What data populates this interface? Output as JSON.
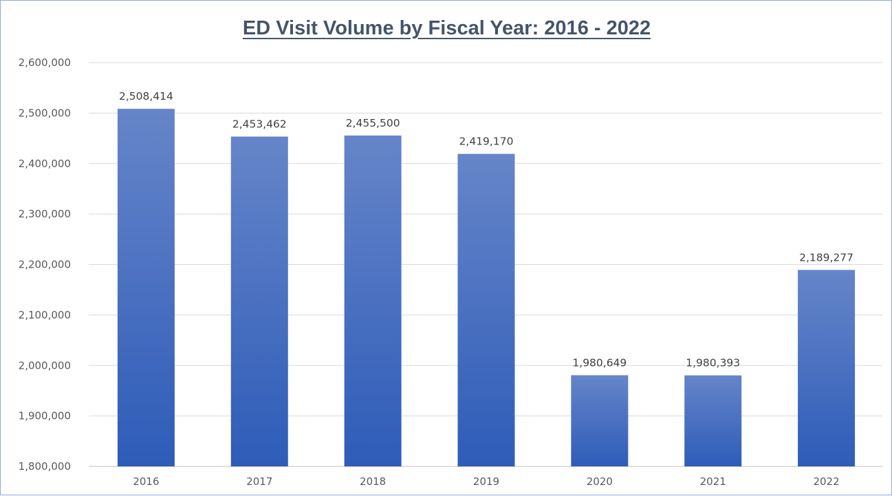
{
  "chart_data": {
    "type": "bar",
    "title": "ED Visit Volume by Fiscal Year: 2016 - 2022",
    "xlabel": "",
    "ylabel": "",
    "categories": [
      "2016",
      "2017",
      "2018",
      "2019",
      "2020",
      "2021",
      "2022"
    ],
    "values": [
      2508414,
      2453462,
      2455500,
      2419170,
      1980649,
      1980393,
      2189277
    ],
    "value_labels": [
      "2,508,414",
      "2,453,462",
      "2,455,500",
      "2,419,170",
      "1,980,649",
      "1,980,393",
      "2,189,277"
    ],
    "ylim": [
      1800000,
      2600000
    ],
    "yticks": [
      1800000,
      1900000,
      2000000,
      2100000,
      2200000,
      2300000,
      2400000,
      2500000,
      2600000
    ],
    "ytick_labels": [
      "1,800,000",
      "1,900,000",
      "2,000,000",
      "2,100,000",
      "2,200,000",
      "2,300,000",
      "2,400,000",
      "2,500,000",
      "2,600,000"
    ],
    "grid": true,
    "legend": "none",
    "colors": {
      "bar_top": "#6685c9",
      "bar_bottom": "#2e5cb8",
      "grid": "#d9d9d9",
      "axis": "#bfbfbf",
      "title": "#44546a"
    }
  }
}
